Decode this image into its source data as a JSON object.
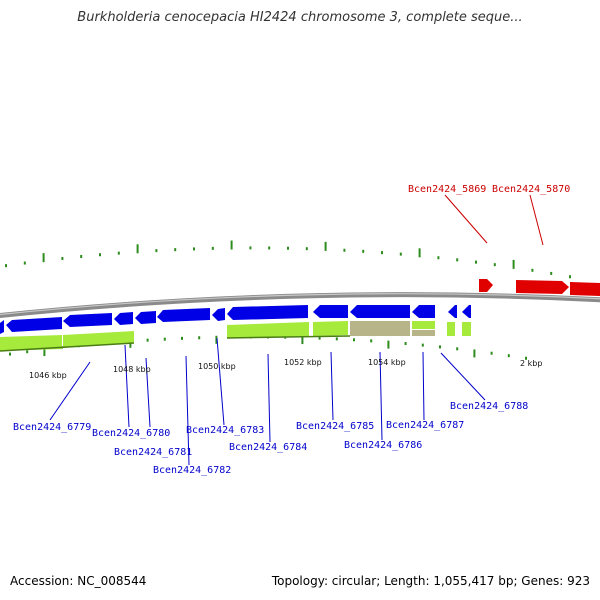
{
  "title": "Burkholderia cenocepacia HI2424 chromosome 3, complete seque...",
  "footer": {
    "accession": "Accession: NC_008544",
    "summary": "Topology: circular; Length: 1,055,417 bp; Genes: 923"
  },
  "colors": {
    "backbone": "#8a8a8a",
    "forward_gene": "#e00000",
    "reverse_gene": "#0000e6",
    "cds_green": "#a6ea3c",
    "cds_tan": "#b8b48a",
    "tick": "#2e8b1e",
    "label_blue": "#0000cc",
    "label_red": "#cc0000"
  },
  "ticks": [
    {
      "label": "1046 kbp"
    },
    {
      "label": "1048 kbp"
    },
    {
      "label": "1050 kbp"
    },
    {
      "label": "1052 kbp"
    },
    {
      "label": "1054 kbp"
    },
    {
      "label": "2 kbp"
    }
  ],
  "genes_forward": [
    {
      "name": "Bcen2424_5869"
    },
    {
      "name": "Bcen2424_5870"
    }
  ],
  "genes_reverse": [
    {
      "name": "Bcen2424_6779"
    },
    {
      "name": "Bcen2424_6780"
    },
    {
      "name": "Bcen2424_6781"
    },
    {
      "name": "Bcen2424_6782"
    },
    {
      "name": "Bcen2424_6783"
    },
    {
      "name": "Bcen2424_6784"
    },
    {
      "name": "Bcen2424_6785"
    },
    {
      "name": "Bcen2424_6786"
    },
    {
      "name": "Bcen2424_6787"
    },
    {
      "name": "Bcen2424_6788"
    }
  ]
}
